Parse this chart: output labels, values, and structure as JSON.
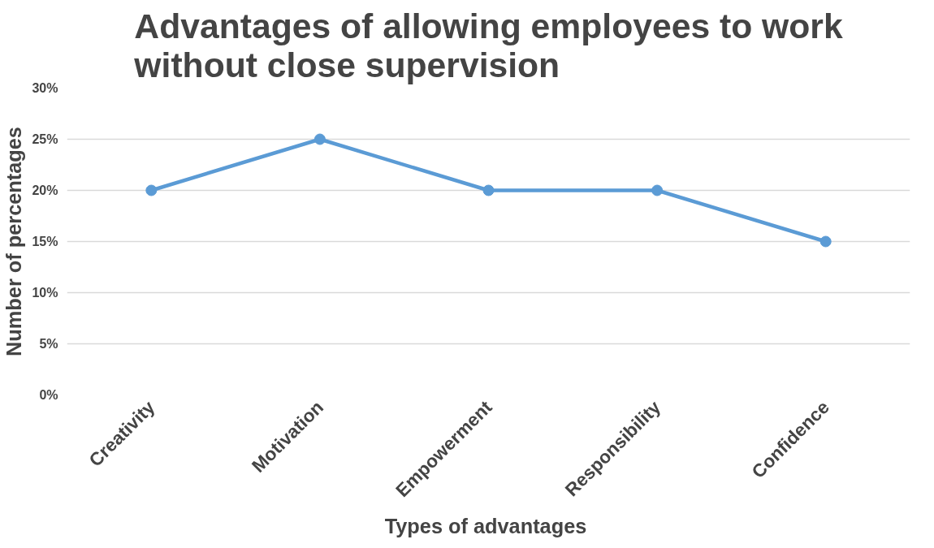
{
  "chart_data": {
    "type": "line",
    "title": "Advantages of allowing employees to work without close supervision",
    "xlabel": "Types  of advantages",
    "ylabel": "Number of percentages",
    "categories": [
      "Creativity",
      "Motivation",
      "Empowerment",
      "Responsibility",
      "Confidence"
    ],
    "series": [
      {
        "color": "#5b9bd5",
        "values": [
          20,
          25,
          20,
          20,
          15
        ]
      }
    ],
    "ylim": [
      0,
      30
    ],
    "yticks": [
      {
        "value": 0,
        "label": "0%"
      },
      {
        "value": 5,
        "label": "5%"
      },
      {
        "value": 10,
        "label": "10%"
      },
      {
        "value": 15,
        "label": "15%"
      },
      {
        "value": 20,
        "label": "20%"
      },
      {
        "value": 25,
        "label": "25%"
      },
      {
        "value": 30,
        "label": "30%"
      }
    ],
    "grid": "y",
    "marker": "circle",
    "line_style": "solid"
  }
}
